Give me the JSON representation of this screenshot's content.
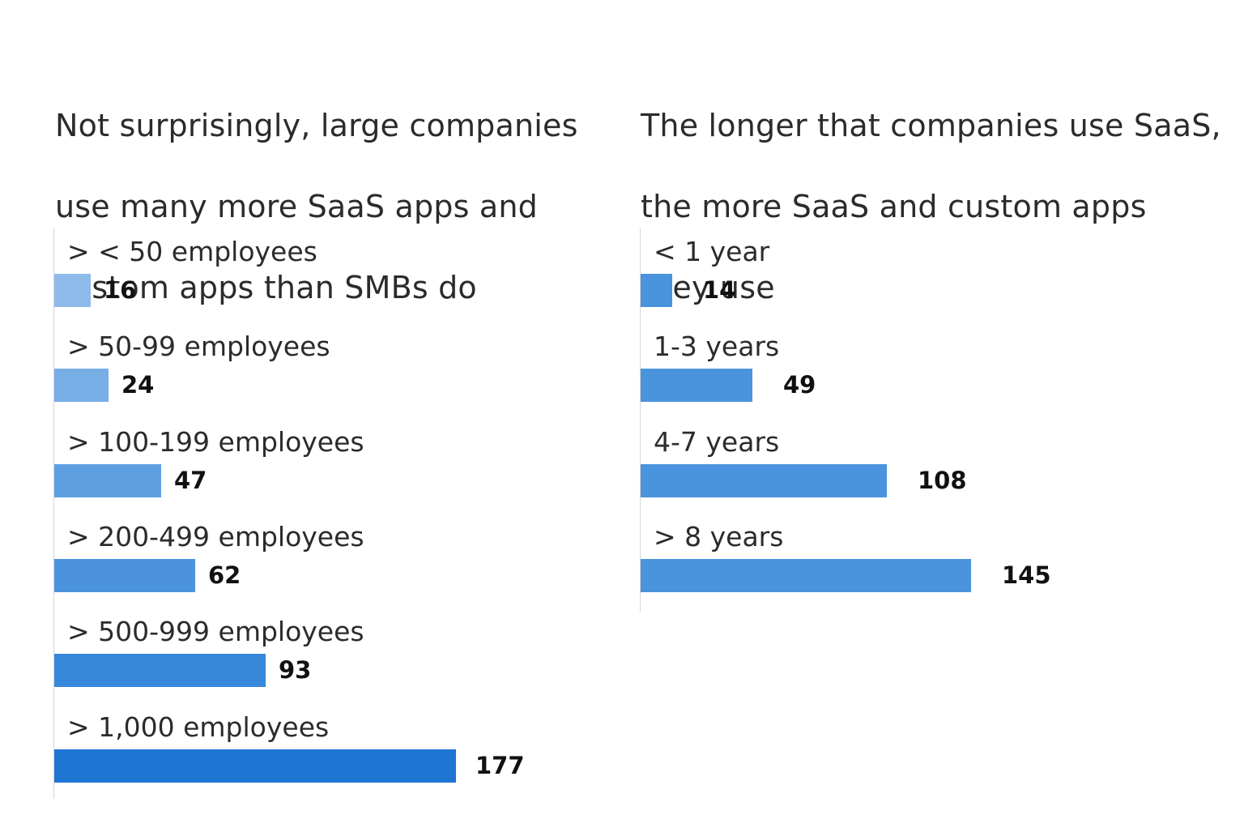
{
  "chart_data": [
    {
      "type": "bar",
      "orientation": "horizontal",
      "title": "Not surprisingly, large companies use many more SaaS apps and custom apps than SMBs do",
      "title_lines": [
        "Not surprisingly, large companies",
        "use many more SaaS apps and",
        "custom apps than SMBs do"
      ],
      "categories": [
        "> < 50 employees",
        "> 50-99 employees",
        "> 100-199 employees",
        "> 200-499 employees",
        "> 500-999 employees",
        "> 1,000 employees"
      ],
      "values": [
        16,
        24,
        47,
        62,
        93,
        177
      ],
      "value_labels": [
        "16",
        "24",
        "47",
        "62",
        "93",
        "177"
      ],
      "colors": [
        "#8ebbea",
        "#77aee6",
        "#5e9fe1",
        "#4b93dd",
        "#3788da",
        "#1f75d2"
      ],
      "xlim": [
        0,
        177
      ],
      "grid": false,
      "legend": "none"
    },
    {
      "type": "bar",
      "orientation": "horizontal",
      "title": "The longer that companies use SaaS, the more SaaS and custom apps they use",
      "title_lines": [
        "The longer that companies use SaaS,",
        "the more SaaS and custom apps",
        "they use"
      ],
      "categories": [
        "< 1 year",
        "1-3 years",
        "4-7 years",
        "> 8 years"
      ],
      "values": [
        14,
        49,
        108,
        145
      ],
      "value_labels": [
        "14",
        "49",
        "108",
        "145"
      ],
      "colors": [
        "#4a93dd",
        "#4a93dd",
        "#4a93dd",
        "#4a93dd"
      ],
      "xlim": [
        0,
        145
      ],
      "grid": false,
      "legend": "none"
    }
  ]
}
